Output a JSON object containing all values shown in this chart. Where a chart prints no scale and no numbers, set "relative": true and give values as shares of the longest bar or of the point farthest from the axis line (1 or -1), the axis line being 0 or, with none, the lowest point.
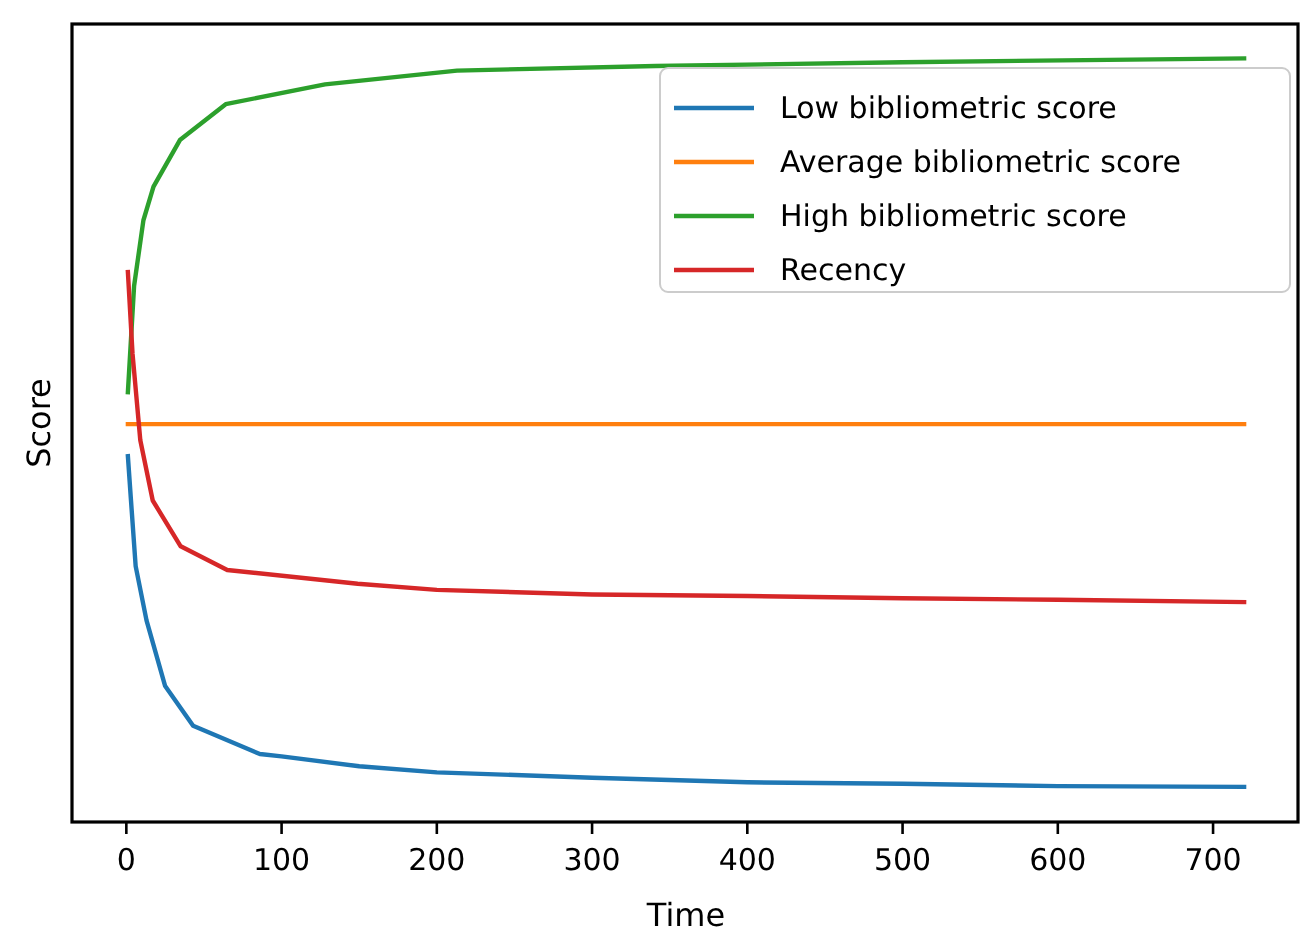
{
  "chart_data": {
    "type": "line",
    "relative": true,
    "xlabel": "Time",
    "ylabel": "Score",
    "xlim": [
      -35,
      756
    ],
    "xticks": [
      0,
      100,
      200,
      300,
      400,
      500,
      600,
      700
    ],
    "legend": "top right",
    "grid": false,
    "tick_labels": "x",
    "series": [
      {
        "name": "Low bibliometric score",
        "color": "#1f77b4",
        "x": [
          1,
          3,
          6,
          13,
          25,
          43,
          86,
          100,
          150,
          200,
          300,
          400,
          500,
          600,
          720
        ],
        "values": [
          0.479,
          0.421,
          0.335,
          0.264,
          0.178,
          0.126,
          0.089,
          0.086,
          0.073,
          0.065,
          0.058,
          0.052,
          0.05,
          0.047,
          0.046
        ]
      },
      {
        "name": "Average bibliometric score",
        "color": "#ff7f0e",
        "x": [
          1,
          720
        ],
        "values": [
          0.521,
          0.521
        ]
      },
      {
        "name": "High bibliometric score",
        "color": "#2ca02c",
        "x": [
          1,
          5,
          11,
          17.5,
          34.5,
          64,
          128,
          213,
          341,
          500,
          720
        ],
        "values": [
          0.563,
          0.702,
          0.788,
          0.832,
          0.893,
          0.94,
          0.966,
          0.984,
          0.99,
          0.995,
          1
        ]
      },
      {
        "name": "Recency",
        "color": "#d62728",
        "x": [
          1,
          4,
          9,
          17,
          35,
          65,
          149,
          200,
          300,
          400,
          500,
          600,
          720
        ],
        "values": [
          0.72,
          0.613,
          0.5,
          0.421,
          0.361,
          0.33,
          0.312,
          0.304,
          0.298,
          0.296,
          0.293,
          0.291,
          0.288
        ]
      }
    ]
  }
}
